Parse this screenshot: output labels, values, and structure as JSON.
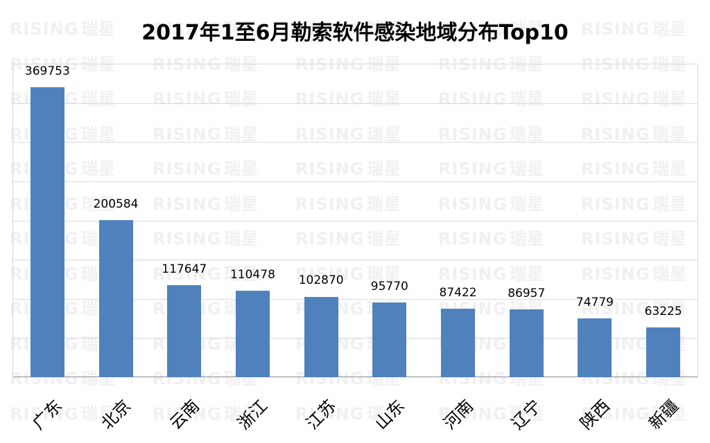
{
  "title": "2017年1至6月勒索软件感染地域分布Top10",
  "watermark": {
    "latin": "RISING",
    "cjk": "瑞星"
  },
  "colors": {
    "bar": "#4f81bd",
    "grid": "#d9d9d9",
    "axis": "#8c8c8c"
  },
  "chart_data": {
    "type": "bar",
    "title": "2017年1至6月勒索软件感染地域分布Top10",
    "xlabel": "",
    "ylabel": "",
    "categories": [
      "广东",
      "北京",
      "云南",
      "浙江",
      "江苏",
      "山东",
      "河南",
      "辽宁",
      "陕西",
      "新疆"
    ],
    "values": [
      369753,
      200584,
      117647,
      110478,
      102870,
      95770,
      87422,
      86957,
      74779,
      63225
    ],
    "ylim": [
      0,
      400000
    ],
    "grid": true,
    "gridline_step": 50000,
    "y_tick_labels_shown": false,
    "data_labels": true,
    "legend": "none",
    "x_label_rotation": -45
  },
  "bars": [
    {
      "label": "广东",
      "value": "369753"
    },
    {
      "label": "北京",
      "value": "200584"
    },
    {
      "label": "云南",
      "value": "117647"
    },
    {
      "label": "浙江",
      "value": "110478"
    },
    {
      "label": "江苏",
      "value": "102870"
    },
    {
      "label": "山东",
      "value": "95770"
    },
    {
      "label": "河南",
      "value": "87422"
    },
    {
      "label": "辽宁",
      "value": "86957"
    },
    {
      "label": "陕西",
      "value": "74779"
    },
    {
      "label": "新疆",
      "value": "63225"
    }
  ]
}
